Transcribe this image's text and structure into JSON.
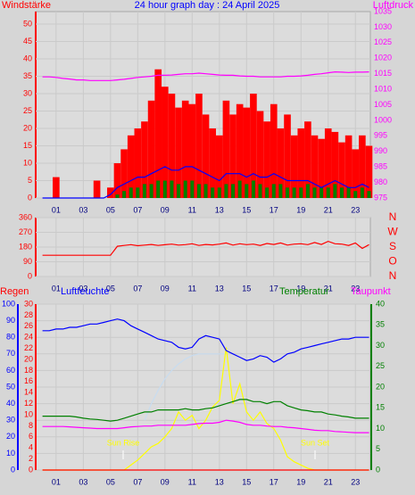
{
  "chart_data": [
    {
      "type": "combo",
      "title": "24 hour graph day : 24 April 2025",
      "ylabel": "Windstärke",
      "y2label": "Luftdruck",
      "xlim": [
        -0.5,
        24.1
      ],
      "xticks": [
        {
          "value": 1,
          "label": "01"
        },
        {
          "value": 3,
          "label": "03"
        },
        {
          "value": 5,
          "label": "05"
        },
        {
          "value": 7,
          "label": "07"
        },
        {
          "value": 9,
          "label": "09"
        },
        11,
        13,
        15,
        17,
        19,
        21,
        23
      ],
      "ylim": [
        0,
        53.6
      ],
      "yticks": [
        0,
        5,
        10,
        15,
        20,
        25,
        30,
        35,
        40,
        45,
        50
      ],
      "y2lim": [
        975,
        1035
      ],
      "y2ticks": [
        975,
        980,
        985,
        990,
        995,
        1000,
        1005,
        1010,
        1015,
        1020,
        1025,
        1030,
        1035
      ],
      "grid": true,
      "x": [
        0,
        0.5,
        1,
        1.5,
        2,
        2.5,
        3,
        3.5,
        4,
        4.5,
        5,
        5.5,
        6,
        6.5,
        7,
        7.5,
        8,
        8.5,
        9,
        9.5,
        10,
        10.5,
        11,
        11.5,
        12,
        12.5,
        13,
        13.5,
        14,
        14.5,
        15,
        15.5,
        16,
        16.5,
        17,
        17.5,
        18,
        18.5,
        19,
        19.5,
        20,
        20.5,
        21,
        21.5,
        22,
        22.5,
        23,
        23.5,
        24
      ],
      "series": [
        {
          "type": "bar",
          "color": "#ff0000",
          "values": [
            0,
            0,
            6,
            0,
            0,
            0,
            0,
            0,
            5,
            0,
            3,
            10,
            14,
            18,
            20,
            22,
            28,
            37,
            32,
            30,
            26,
            28,
            27,
            30,
            24,
            20,
            18,
            28,
            24,
            27,
            26,
            30,
            25,
            22,
            27,
            20,
            24,
            18,
            20,
            22,
            18,
            17,
            20,
            19,
            16,
            18,
            14,
            18,
            15
          ]
        },
        {
          "type": "bar",
          "color": "#008000",
          "values": [
            0,
            0,
            0,
            0,
            0,
            0,
            0,
            0,
            0,
            0,
            0,
            1,
            2,
            3,
            3,
            4,
            4,
            5,
            5,
            5,
            4,
            5,
            5,
            4,
            4,
            3,
            3,
            4,
            4,
            5,
            4,
            5,
            4,
            3,
            4,
            4,
            3,
            3,
            3,
            4,
            3,
            3,
            3,
            4,
            3,
            3,
            2,
            3,
            2
          ]
        },
        {
          "type": "line",
          "color": "#0000ff",
          "values": [
            0,
            0,
            0,
            0,
            0,
            0,
            0,
            0,
            0,
            0,
            1,
            3,
            4,
            5,
            6,
            6,
            7,
            8,
            9,
            8,
            8,
            9,
            9,
            8,
            7,
            6,
            5,
            7,
            7,
            7,
            6,
            7,
            6,
            6,
            7,
            6,
            5,
            5,
            5,
            5,
            4,
            3,
            4,
            5,
            4,
            3,
            3,
            4,
            3
          ]
        },
        {
          "type": "line",
          "axis": "y2",
          "color": "#ff00ff",
          "values": [
            1014,
            1014,
            1013.8,
            1013.5,
            1013.3,
            1013,
            1013,
            1012.8,
            1012.8,
            1012.8,
            1012.8,
            1013,
            1013.2,
            1013.5,
            1013.8,
            1014,
            1014.2,
            1014.5,
            1014.5,
            1014.6,
            1014.8,
            1015,
            1015,
            1015.2,
            1015,
            1014.8,
            1014.6,
            1014.5,
            1014.5,
            1014.3,
            1014.2,
            1014.2,
            1014,
            1014,
            1014,
            1014,
            1014.2,
            1014.2,
            1014.3,
            1014.5,
            1014.8,
            1015,
            1015.3,
            1015.6,
            1015.5,
            1015.4,
            1015.5,
            1015.5,
            1015.6
          ]
        }
      ]
    },
    {
      "type": "line",
      "xlim": [
        -0.5,
        24.1
      ],
      "xticks": [
        {
          "value": 1,
          "label": "01"
        },
        {
          "value": 3,
          "label": "03"
        },
        {
          "value": 5,
          "label": "05"
        },
        {
          "value": 7,
          "label": "07"
        },
        {
          "value": 9,
          "label": "09"
        },
        11,
        13,
        15,
        17,
        19,
        21,
        23
      ],
      "ylim": [
        0,
        360
      ],
      "yticks": [
        0,
        90,
        180,
        270,
        360
      ],
      "y2lim": [
        0,
        360
      ],
      "y2ticks": [
        {
          "value": 360,
          "label": "N"
        },
        {
          "value": 270,
          "label": "W"
        },
        {
          "value": 180,
          "label": "S"
        },
        {
          "value": 90,
          "label": "O"
        },
        {
          "value": 0,
          "label": "N"
        }
      ],
      "grid": true,
      "x": [
        0,
        0.5,
        1,
        1.5,
        2,
        2.5,
        3,
        3.5,
        4,
        4.5,
        5,
        5.5,
        6,
        6.5,
        7,
        7.5,
        8,
        8.5,
        9,
        9.5,
        10,
        10.5,
        11,
        11.5,
        12,
        12.5,
        13,
        13.5,
        14,
        14.5,
        15,
        15.5,
        16,
        16.5,
        17,
        17.5,
        18,
        18.5,
        19,
        19.5,
        20,
        20.5,
        21,
        21.5,
        22,
        22.5,
        23,
        23.5,
        24
      ],
      "series": [
        {
          "type": "line",
          "color": "#ff0000",
          "values": [
            130,
            130,
            130,
            130,
            130,
            130,
            130,
            130,
            130,
            130,
            130,
            185,
            190,
            195,
            188,
            192,
            196,
            190,
            194,
            198,
            192,
            195,
            200,
            190,
            196,
            193,
            198,
            205,
            192,
            200,
            195,
            198,
            190,
            202,
            196,
            205,
            192,
            198,
            200,
            195,
            208,
            196,
            215,
            200,
            198,
            190,
            205,
            172,
            195
          ]
        }
      ]
    },
    {
      "type": "line",
      "ylabel": "Luftfeuchte",
      "annotations": [
        "Sun Rise",
        "Sun Set"
      ],
      "xlim": [
        -0.5,
        24.1
      ],
      "xticks": [
        {
          "value": 1,
          "label": "01"
        },
        {
          "value": 3,
          "label": "03"
        },
        {
          "value": 5,
          "label": "05"
        },
        {
          "value": 7,
          "label": "07"
        },
        {
          "value": 9,
          "label": "09"
        },
        11,
        13,
        15,
        17,
        19,
        21,
        23
      ],
      "ylim": [
        0,
        100
      ],
      "yticks": [
        0,
        10,
        20,
        30,
        40,
        50,
        60,
        70,
        80,
        90,
        100
      ],
      "y2lim": [
        0,
        30
      ],
      "y2ticks": [
        0,
        2,
        4,
        6,
        8,
        10,
        12,
        14,
        16,
        18,
        20,
        22,
        24,
        26,
        28,
        30
      ],
      "y3lim": [
        0,
        40
      ],
      "y3ticks": [
        0,
        5,
        10,
        15,
        20,
        25,
        30,
        35,
        40
      ],
      "grid": true,
      "x": [
        0,
        0.5,
        1,
        1.5,
        2,
        2.5,
        3,
        3.5,
        4,
        4.5,
        5,
        5.5,
        6,
        6.5,
        7,
        7.5,
        8,
        8.5,
        9,
        9.5,
        10,
        10.5,
        11,
        11.5,
        12,
        12.5,
        13,
        13.5,
        14,
        14.5,
        15,
        15.5,
        16,
        16.5,
        17,
        17.5,
        18,
        18.5,
        19,
        19.5,
        20,
        20.5,
        21,
        21.5,
        22,
        22.5,
        23,
        23.5,
        24
      ],
      "series": [
        {
          "type": "line",
          "color": "#c8dcf0",
          "values": [
            null,
            null,
            null,
            null,
            null,
            null,
            null,
            null,
            null,
            null,
            null,
            null,
            null,
            null,
            null,
            30,
            40,
            48,
            55,
            60,
            64,
            67,
            69,
            70,
            70,
            70,
            70,
            70,
            null,
            null,
            null,
            null,
            null,
            null,
            null,
            null,
            null,
            null,
            null,
            null,
            null,
            null,
            null,
            null,
            null,
            null,
            null,
            null,
            null
          ]
        },
        {
          "type": "line",
          "color": "#ffff00",
          "values": [
            0,
            0,
            0,
            0,
            0,
            0,
            0,
            0,
            0,
            0,
            0,
            0,
            0,
            3,
            6,
            10,
            14,
            16,
            20,
            25,
            35,
            30,
            33,
            25,
            30,
            38,
            42,
            74,
            40,
            52,
            35,
            30,
            35,
            28,
            25,
            18,
            8,
            5,
            3,
            1,
            0,
            0,
            0,
            0,
            0,
            0,
            0,
            0,
            0
          ]
        },
        {
          "type": "line",
          "name": "Luftfeuchte",
          "color": "#0000ff",
          "values": [
            84,
            84,
            85,
            85,
            86,
            86,
            87,
            88,
            88,
            89,
            90,
            91,
            90,
            87,
            85,
            83,
            81,
            79,
            78,
            77,
            74,
            73,
            74,
            79,
            81,
            80,
            79,
            72,
            70,
            68,
            66,
            67,
            69,
            68,
            65,
            67,
            70,
            71,
            73,
            74,
            75,
            76,
            77,
            78,
            79,
            79,
            80,
            80,
            80
          ]
        },
        {
          "type": "line",
          "name": "Regen",
          "axis": "y2",
          "color": "#ff0000",
          "values": [
            0,
            0,
            0,
            0,
            0,
            0,
            0,
            0,
            0,
            0,
            0,
            0,
            0,
            0,
            0,
            0,
            0,
            0,
            0,
            0,
            0,
            0,
            0,
            0,
            0,
            0,
            0,
            0,
            0,
            0,
            0,
            0,
            0,
            0,
            0,
            0,
            0,
            0,
            0,
            0,
            0,
            0,
            0,
            0,
            0,
            0,
            0,
            0,
            0
          ]
        },
        {
          "type": "line",
          "name": "Temperatur",
          "axis": "y3",
          "color": "#008000",
          "values": [
            13,
            13,
            13,
            13,
            13,
            12.8,
            12.5,
            12.3,
            12.2,
            12,
            11.8,
            12,
            12.5,
            13,
            13.5,
            14,
            14,
            14.5,
            14.5,
            14.5,
            14.5,
            14.8,
            14.5,
            14.5,
            14.8,
            15,
            15.5,
            16,
            16.5,
            17,
            17,
            16.5,
            16.5,
            16,
            16.5,
            16.5,
            15.5,
            15,
            14.5,
            14.3,
            14,
            14,
            13.5,
            13.3,
            13,
            12.8,
            12.5,
            12.5,
            12.5
          ]
        },
        {
          "type": "line",
          "name": "Taupunkt",
          "axis": "y3",
          "color": "#ff00ff",
          "values": [
            10.5,
            10.5,
            10.5,
            10.5,
            10.4,
            10.3,
            10.2,
            10.1,
            10,
            10,
            10,
            10,
            10.2,
            10.4,
            10.5,
            10.6,
            10.6,
            10.8,
            10.8,
            10.8,
            10.8,
            10.8,
            11,
            11.2,
            11.3,
            11.3,
            11.5,
            12,
            11.8,
            11.5,
            11,
            10.8,
            10.8,
            10.6,
            10.5,
            10.5,
            10.3,
            10.2,
            10,
            9.8,
            9.6,
            9.5,
            9.5,
            9.3,
            9.2,
            9.1,
            9,
            9,
            9
          ]
        }
      ]
    }
  ]
}
